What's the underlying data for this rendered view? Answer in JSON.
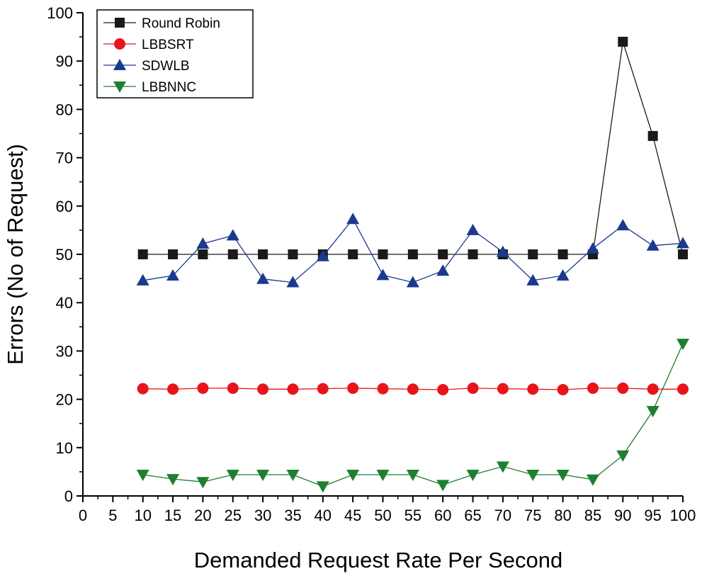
{
  "chart_data": {
    "type": "line",
    "title": "",
    "xlabel": "Demanded Request Rate Per Second",
    "ylabel": "Errors (No of Request)",
    "xlim": [
      0,
      100
    ],
    "ylim": [
      0,
      100
    ],
    "xticks": [
      0,
      5,
      10,
      15,
      20,
      25,
      30,
      35,
      40,
      45,
      50,
      55,
      60,
      65,
      70,
      75,
      80,
      85,
      90,
      95,
      100
    ],
    "yticks": [
      0,
      10,
      20,
      30,
      40,
      50,
      60,
      70,
      80,
      90,
      100
    ],
    "legend_position": "top-left",
    "x": [
      10,
      15,
      20,
      25,
      30,
      35,
      40,
      45,
      50,
      55,
      60,
      65,
      70,
      75,
      80,
      85,
      90,
      95,
      100
    ],
    "series": [
      {
        "name": "Round Robin",
        "marker": "square",
        "color": "#1a1a1a",
        "values": [
          50,
          50,
          50,
          50,
          50,
          50,
          50,
          50,
          50,
          50,
          50,
          50,
          50,
          50,
          50,
          50,
          94,
          74.5,
          50
        ]
      },
      {
        "name": "LBBSRT",
        "marker": "circle",
        "color": "#e8141c",
        "values": [
          22.2,
          22.1,
          22.3,
          22.3,
          22.1,
          22.1,
          22.2,
          22.3,
          22.2,
          22.1,
          22.0,
          22.3,
          22.2,
          22.1,
          22.0,
          22.3,
          22.3,
          22.1,
          22.1
        ]
      },
      {
        "name": "SDWLB",
        "marker": "triangle-up",
        "color": "#1a3a8e",
        "values": [
          44.6,
          45.6,
          52.2,
          53.9,
          44.9,
          44.2,
          49.6,
          57.3,
          45.7,
          44.2,
          46.6,
          55.0,
          50.5,
          44.6,
          45.6,
          51.2,
          56.0,
          51.8,
          52.3
        ]
      },
      {
        "name": "LBBNNC",
        "marker": "triangle-down",
        "color": "#1f7f30",
        "values": [
          4.4,
          3.5,
          2.9,
          4.4,
          4.4,
          4.4,
          2.0,
          4.4,
          4.4,
          4.4,
          2.3,
          4.4,
          6.1,
          4.4,
          4.4,
          3.4,
          8.4,
          17.6,
          31.5
        ]
      }
    ]
  }
}
